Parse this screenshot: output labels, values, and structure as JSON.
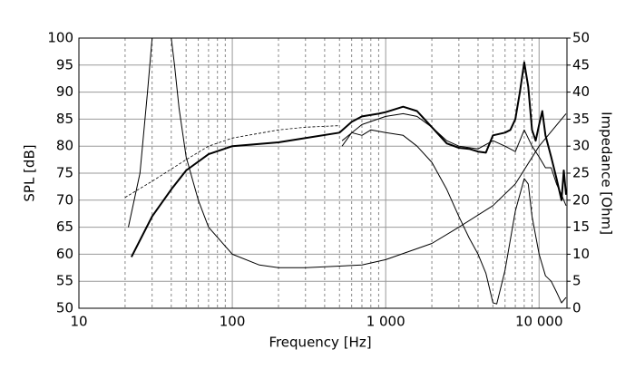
{
  "chart_data": {
    "type": "line",
    "xlabel": "Frequency [Hz]",
    "ylabel": "SPL [dB]",
    "y2label": "Impedance [Ohm]",
    "xscale": "log",
    "xlim": [
      10,
      15200
    ],
    "xticks": [
      10,
      100,
      {
        "value": 1000,
        "label": "1 000"
      },
      {
        "value": 10000,
        "label": "10 000"
      }
    ],
    "xminorticks": [
      20,
      30,
      40,
      50,
      60,
      70,
      80,
      90,
      200,
      300,
      400,
      500,
      600,
      700,
      800,
      900,
      2000,
      3000,
      4000,
      5000,
      6000,
      7000,
      8000,
      9000
    ],
    "ylim": [
      50,
      100
    ],
    "yticks": [
      50,
      55,
      60,
      65,
      70,
      75,
      80,
      85,
      90,
      95,
      100
    ],
    "y2lim": [
      0,
      50
    ],
    "y2ticks": [
      0,
      5,
      10,
      15,
      20,
      25,
      30,
      35,
      40,
      45,
      50
    ],
    "grid": true,
    "series": [
      {
        "color": "#000000",
        "width": 2,
        "dash": false,
        "x": [
          22,
          30,
          40,
          50,
          70,
          100,
          200,
          300,
          500,
          600,
          700,
          900,
          1000,
          1300,
          1600,
          2000,
          2500,
          3000,
          3500,
          4000,
          4500,
          5000,
          6000,
          6500,
          7000,
          7500,
          8000,
          8500,
          9000,
          9500,
          10000,
          10500,
          11000,
          12000,
          13000,
          14000,
          14500,
          15000
        ],
        "values": [
          59.5,
          67,
          72,
          75.5,
          78.5,
          80,
          80.7,
          81.5,
          82.5,
          84.5,
          85.5,
          86,
          86.3,
          87.3,
          86.5,
          83.5,
          80.5,
          79.7,
          79.5,
          79,
          78.8,
          82,
          82.5,
          83,
          85,
          90,
          95.5,
          91,
          83,
          81,
          84,
          86.5,
          82,
          78,
          74,
          70,
          75.5,
          71
        ]
      },
      {
        "color": "#000000",
        "width": 1,
        "dash": false,
        "x": [
          520,
          700,
          1000,
          1300,
          1600,
          2000,
          2500,
          3000,
          4000,
          5000,
          6000,
          7000,
          8000,
          9000,
          10000,
          11000,
          12000,
          13000,
          14000,
          15000
        ],
        "values": [
          81,
          84,
          85.5,
          86,
          85.5,
          83.5,
          81,
          80,
          79.5,
          81,
          80,
          79,
          83,
          80,
          78,
          76,
          76,
          73,
          71,
          69
        ]
      },
      {
        "color": "#000000",
        "width": 1,
        "dash": false,
        "x": [
          520,
          600,
          700,
          800,
          1000,
          1300,
          1600,
          2000,
          2500,
          3000,
          3500,
          4000,
          4500,
          5000,
          5300,
          6000,
          7000,
          8000,
          8500,
          9000,
          10000,
          11000,
          12000,
          13000,
          14000,
          15000
        ],
        "values": [
          80,
          82.5,
          82,
          83,
          82.5,
          82,
          80,
          77,
          72,
          67,
          63,
          60,
          56.5,
          51,
          50.8,
          57,
          68,
          74,
          73,
          67,
          60,
          56,
          55,
          53,
          51,
          52
        ]
      },
      {
        "color": "#000000",
        "width": 0.8,
        "dash": true,
        "x": [
          20,
          30,
          50,
          70,
          100,
          200,
          300,
          500
        ],
        "values": [
          70.5,
          73.5,
          77.5,
          80,
          81.5,
          83,
          83.5,
          83.8
        ]
      },
      {
        "color": "#000000",
        "width": 1,
        "dash": false,
        "axis": "y2",
        "x": [
          21,
          25,
          28,
          30,
          35,
          40,
          42,
          45,
          50,
          60,
          70,
          100,
          150,
          200,
          300,
          500,
          700,
          1000,
          2000,
          3000,
          5000,
          7000,
          10000,
          15000
        ],
        "values": [
          15,
          25,
          40,
          50,
          null,
          50,
          45,
          37,
          28,
          20,
          15,
          10,
          8,
          7.5,
          7.5,
          7.8,
          8,
          9,
          12,
          15,
          19,
          23,
          30,
          36
        ]
      }
    ]
  }
}
